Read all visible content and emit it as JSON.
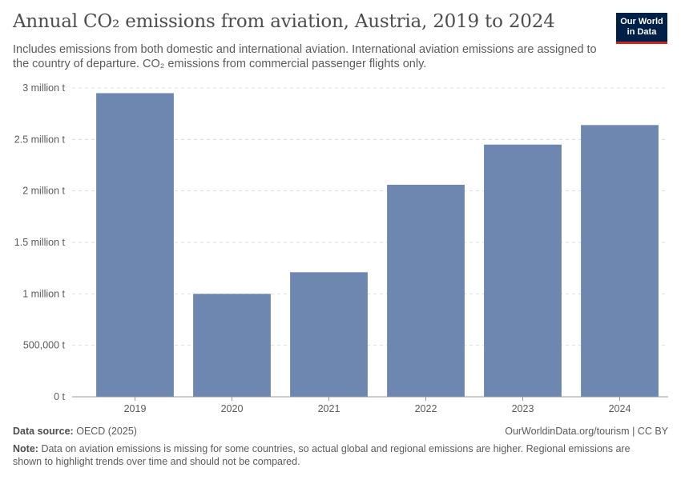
{
  "header": {
    "title": "Annual CO₂ emissions from aviation, Austria, 2019 to 2024",
    "subtitle": "Includes emissions from both domestic and international aviation. International aviation emissions are assigned to the country of departure. CO₂ emissions from commercial passenger flights only.",
    "logo_line1": "Our World",
    "logo_line2": "in Data",
    "logo_bg": "#002147",
    "logo_accent": "#ce261e"
  },
  "footer": {
    "source_label": "Data source:",
    "source_text": "OECD (2025)",
    "credit": "OurWorldinData.org/tourism | CC BY",
    "note_label": "Note:",
    "note_text": "Data on aviation emissions is missing for some countries, so actual global and regional emissions are higher. Regional emissions are shown to highlight trends over time and should not be compared."
  },
  "chart_data": {
    "type": "bar",
    "title": "Annual CO₂ emissions from aviation, Austria, 2019 to 2024",
    "xlabel": "",
    "ylabel": "",
    "categories": [
      "2019",
      "2020",
      "2021",
      "2022",
      "2023",
      "2024"
    ],
    "values": [
      2950000,
      1000000,
      1210000,
      2060000,
      2450000,
      2640000
    ],
    "ylim": [
      0,
      3000000
    ],
    "yticks": [
      0,
      500000,
      1000000,
      1500000,
      2000000,
      2500000,
      3000000
    ],
    "ytick_labels": [
      "0 t",
      "500,000 t",
      "1 million t",
      "1.5 million t",
      "2 million t",
      "2.5 million t",
      "3 million t"
    ],
    "grid": true,
    "bar_color": "#6d87b0"
  }
}
